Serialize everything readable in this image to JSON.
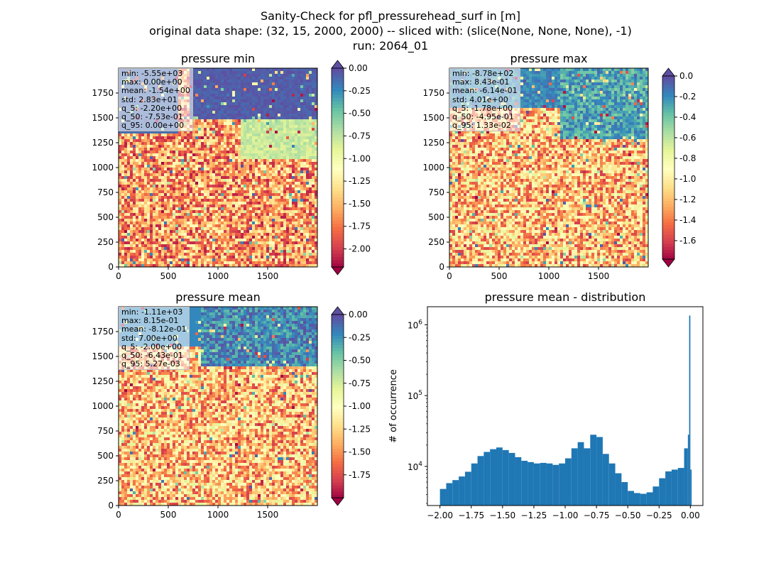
{
  "figure": {
    "title_lines": [
      "Sanity-Check for pfl_pressurehead_surf in [m]",
      "original data shape: (32, 15, 2000, 2000) -- sliced with: (slice(None, None, None), -1)",
      "run: 2064_01"
    ]
  },
  "colormap": "Spectral",
  "palette": [
    "#9e0142",
    "#d53e4f",
    "#f46d43",
    "#fdae61",
    "#fee08b",
    "#ffffbf",
    "#e6f598",
    "#abdda4",
    "#66c2a5",
    "#3288bd",
    "#5e4fa2"
  ],
  "panels": [
    {
      "title": "pressure min",
      "x_ticks": [
        "0",
        "500",
        "1000",
        "1500"
      ],
      "y_ticks": [
        "0",
        "250",
        "500",
        "750",
        "1000",
        "1250",
        "1500",
        "1750"
      ],
      "stats": [
        "min: -5.55e+03",
        "max: 0.00e+00",
        "mean: -1.54e+00",
        "std: 2.83e+01",
        "q_5: -2.20e+00",
        "q_50: -7.53e-01",
        "q_95: 0.00e+00"
      ],
      "colorbar": {
        "min": -2.2,
        "max": 0.0,
        "ticks": [
          "0.00",
          "-0.25",
          "-0.50",
          "-0.75",
          "-1.00",
          "-1.25",
          "-1.50",
          "-1.75",
          "-2.00"
        ],
        "extend": "both"
      }
    },
    {
      "title": "pressure max",
      "x_ticks": [
        "0",
        "500",
        "1000",
        "1500"
      ],
      "y_ticks": [
        "0",
        "250",
        "500",
        "750",
        "1000",
        "1250",
        "1500",
        "1750"
      ],
      "stats": [
        "min: -8.78e+02",
        "max: 8.43e-01",
        "mean: -6.14e-01",
        "std: 4.01e+00",
        "q_5: -1.78e+00",
        "q_50: -4.95e-01",
        "q_95: 1.33e-02"
      ],
      "colorbar": {
        "min": -1.78,
        "max": 0.0,
        "ticks": [
          "0.0",
          "-0.2",
          "-0.4",
          "-0.6",
          "-0.8",
          "-1.0",
          "-1.2",
          "-1.4",
          "-1.6"
        ],
        "extend": "both"
      }
    },
    {
      "title": "pressure mean",
      "x_ticks": [
        "0",
        "500",
        "1000",
        "1500"
      ],
      "y_ticks": [
        "0",
        "250",
        "500",
        "750",
        "1000",
        "1250",
        "1500",
        "1750"
      ],
      "stats": [
        "min: -1.11e+03",
        "max: 8.15e-01",
        "mean: -8.12e-01",
        "std: 7.00e+00",
        "q_5: -2.00e+00",
        "q_50: -6.43e-01",
        "q_95: 5.27e-03"
      ],
      "colorbar": {
        "min": -2.0,
        "max": 0.0,
        "ticks": [
          "0.00",
          "-0.25",
          "-0.50",
          "-0.75",
          "-1.00",
          "-1.25",
          "-1.50",
          "-1.75"
        ],
        "extend": "both"
      }
    }
  ],
  "chart_data": [
    {
      "type": "heatmap",
      "title": "pressure min",
      "xlim": [
        0,
        2000
      ],
      "ylim": [
        0,
        2000
      ],
      "clim": [
        -2.2,
        0.0
      ]
    },
    {
      "type": "heatmap",
      "title": "pressure max",
      "xlim": [
        0,
        2000
      ],
      "ylim": [
        0,
        2000
      ],
      "clim": [
        -1.78,
        0.0
      ]
    },
    {
      "type": "heatmap",
      "title": "pressure mean",
      "xlim": [
        0,
        2000
      ],
      "ylim": [
        0,
        2000
      ],
      "clim": [
        -2.0,
        0.0
      ]
    },
    {
      "type": "bar",
      "title": "pressure mean - distribution",
      "xlabel": "",
      "ylabel": "# of occurrence",
      "yscale": "log",
      "xlim": [
        -2.1,
        0.1
      ],
      "ylim": [
        2800,
        1800000
      ],
      "x_ticks": [
        "−2.00",
        "−1.75",
        "−1.50",
        "−1.25",
        "−1.00",
        "−0.75",
        "−0.50",
        "−0.25",
        "0.00"
      ],
      "y_ticks": [
        "10^4",
        "10^5",
        "10^6"
      ],
      "bar_color": "#1f77b4",
      "bin_width": 0.01,
      "bin_start": [
        -2.0,
        -1.95,
        -1.9,
        -1.85,
        -1.8,
        -1.75,
        -1.7,
        -1.65,
        -1.6,
        -1.55,
        -1.5,
        -1.45,
        -1.4,
        -1.35,
        -1.3,
        -1.25,
        -1.2,
        -1.15,
        -1.1,
        -1.05,
        -1.0,
        -0.95,
        -0.9,
        -0.85,
        -0.8,
        -0.75,
        -0.7,
        -0.65,
        -0.6,
        -0.55,
        -0.5,
        -0.45,
        -0.4,
        -0.35,
        -0.3,
        -0.25,
        -0.2,
        -0.15,
        -0.1,
        -0.05,
        -0.02,
        -0.01,
        0.0
      ],
      "counts": [
        4800,
        5800,
        6400,
        7200,
        8400,
        11000,
        14000,
        16000,
        17500,
        18500,
        17000,
        15500,
        13500,
        12000,
        11500,
        11000,
        11200,
        11000,
        10500,
        11000,
        13000,
        18000,
        22000,
        18000,
        28000,
        26000,
        15000,
        11000,
        8000,
        6000,
        4500,
        4200,
        4100,
        4300,
        5200,
        6800,
        8500,
        9000,
        9500,
        18000,
        28000,
        1350000,
        9000
      ]
    }
  ]
}
